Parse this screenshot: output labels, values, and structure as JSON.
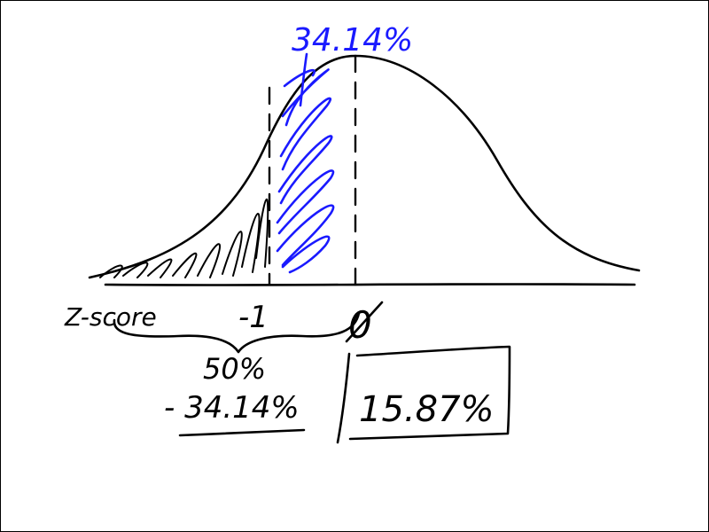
{
  "labels": {
    "shaded_percent": "34.14%",
    "axis_label": "Z-score",
    "tick_neg_one": "-1",
    "tick_zero": "0",
    "subtract_top": "50%",
    "subtract_bottom": "- 34.14%",
    "result": "15.87%"
  },
  "colors": {
    "ink": "#000000",
    "highlight": "#1a1aff",
    "background": "#ffffff"
  }
}
